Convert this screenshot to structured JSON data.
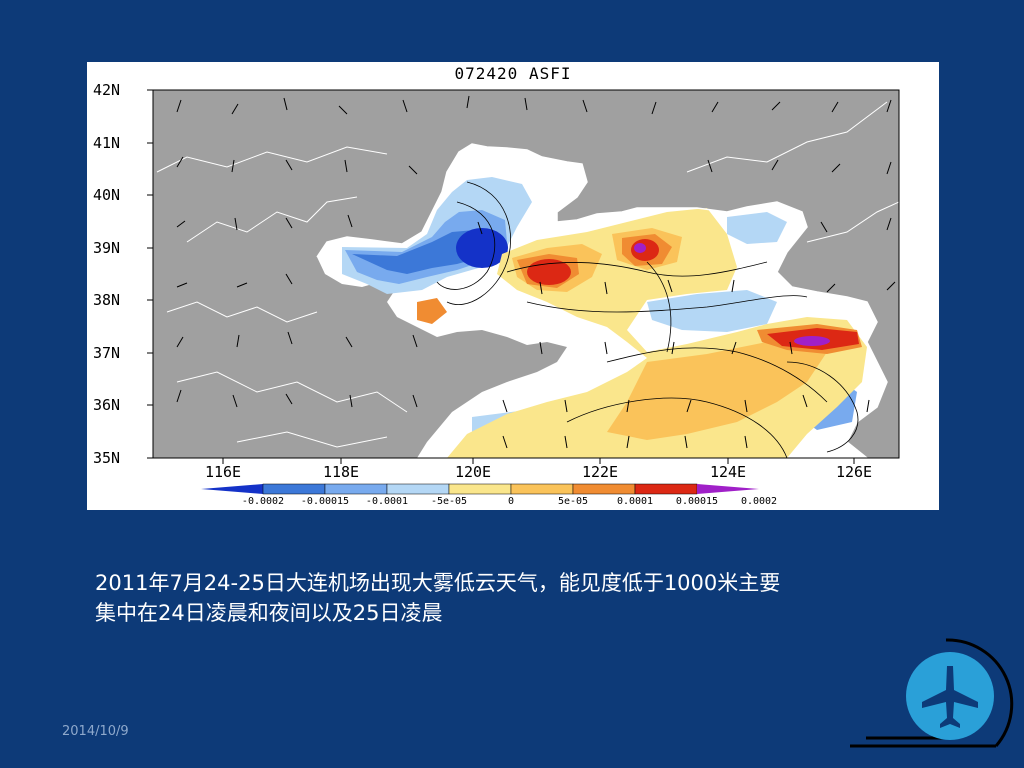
{
  "figure": {
    "title": "072420 ASFI",
    "lat_labels": [
      "42N",
      "41N",
      "40N",
      "39N",
      "38N",
      "37N",
      "36N",
      "35N"
    ],
    "lon_labels": [
      "116E",
      "118E",
      "120E",
      "122E",
      "124E",
      "126E"
    ],
    "colorbar_labels": [
      "-0.0002",
      "-0.00015",
      "-0.0001",
      "-5e-05",
      "0",
      "5e-05",
      "0.0001",
      "0.00015",
      "0.0002"
    ],
    "colorbar_colors": [
      "#1432c8",
      "#3c78d8",
      "#78aaee",
      "#b4d7f5",
      "#fae68c",
      "#fac35a",
      "#f08c32",
      "#dc2814",
      "#a020c8"
    ],
    "land_color": "#a0a0a0"
  },
  "caption_line1": "2011年7月24-25日大连机场出现大雾低云天气，能见度低于1000米主要",
  "caption_line2": "集中在24日凌晨和夜间以及25日凌晨",
  "date": "2014/10/9",
  "logo": {
    "icon": "airplane-icon",
    "color": "#2aa0d8"
  }
}
